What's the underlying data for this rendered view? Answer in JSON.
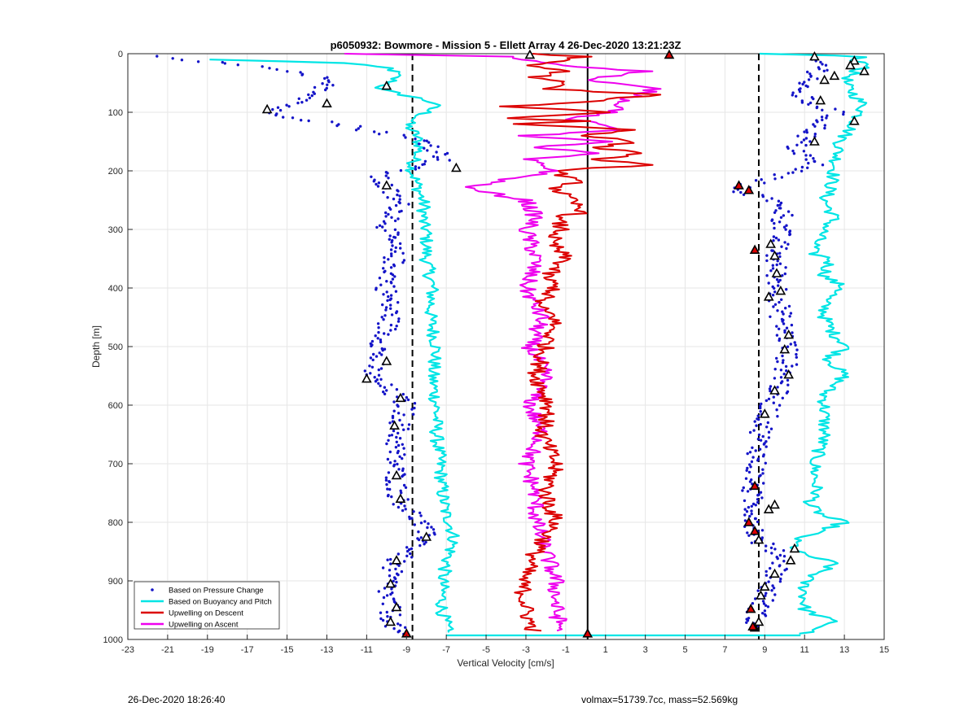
{
  "footer": {
    "timestamp": "26-Dec-2020 18:26:40",
    "params": "volmax=51739.7cc, mass=52.569kg"
  },
  "chart_data": {
    "type": "line",
    "title": "p6050932: Bowmore - Mission 5 - Ellett Array 4 26-Dec-2020 13:21:23Z",
    "xlabel": "Vertical Velocity [cm/s]",
    "ylabel": "Depth [m]",
    "xlim": [
      -23,
      15
    ],
    "ylim": [
      0,
      1000
    ],
    "y_reversed": true,
    "grid": true,
    "legend_placement": "bottom-left",
    "xticks": [
      -23,
      -21,
      -19,
      -17,
      -15,
      -13,
      -11,
      -9,
      -7,
      -5,
      -3,
      -1,
      1,
      3,
      5,
      7,
      9,
      11,
      13,
      15
    ],
    "yticks": [
      0,
      100,
      200,
      300,
      400,
      500,
      600,
      700,
      800,
      900,
      1000
    ],
    "reference_lines": [
      {
        "style": "dashed",
        "color": "#000000",
        "x": -8.7
      },
      {
        "style": "dashed",
        "color": "#000000",
        "x": 8.7
      },
      {
        "style": "solid",
        "color": "#000000",
        "x": 0.1
      }
    ],
    "series": [
      {
        "name": "Based on Pressure Change",
        "color": "#1414c8",
        "style": "markers",
        "descent": {
          "depth": [
            5,
            20,
            40,
            60,
            80,
            100,
            120,
            150,
            180,
            210,
            230,
            260,
            300,
            350,
            400,
            450,
            500,
            550,
            600,
            650,
            700,
            760,
            800,
            830,
            870,
            920,
            960,
            990
          ],
          "value": [
            -22.0,
            -17.0,
            -13.5,
            -13.0,
            -14.0,
            -16.0,
            -12.5,
            -8.0,
            -7.0,
            -10.5,
            -10.0,
            -9.3,
            -10.0,
            -9.6,
            -10.0,
            -9.8,
            -10.3,
            -10.8,
            -9.0,
            -9.5,
            -9.6,
            -9.4,
            -8.3,
            -8.0,
            -9.7,
            -10.0,
            -9.8,
            -9.5
          ]
        },
        "ascent": {
          "depth": [
            5,
            20,
            40,
            60,
            80,
            100,
            130,
            160,
            190,
            230,
            260,
            300,
            350,
            400,
            450,
            500,
            550,
            600,
            650,
            700,
            750,
            790,
            830,
            860,
            900,
            940,
            980
          ],
          "value": [
            11.0,
            12.0,
            11.5,
            10.5,
            11.0,
            12.5,
            11.5,
            10.5,
            11.5,
            7.5,
            10.0,
            9.8,
            9.5,
            9.7,
            9.8,
            10.2,
            10.0,
            9.3,
            8.8,
            8.6,
            8.3,
            8.5,
            8.6,
            10.0,
            9.4,
            8.8,
            8.3
          ]
        }
      },
      {
        "name": "Based on Buoyancy and Pitch",
        "color": "#00e5e5",
        "style": "line",
        "descent": {
          "depth": [
            10,
            15,
            25,
            35,
            50,
            60,
            75,
            85,
            100,
            120,
            140,
            160,
            180,
            200,
            230,
            260,
            290,
            300,
            350,
            400,
            450,
            500,
            550,
            600,
            650,
            700,
            750,
            790,
            800,
            830,
            850,
            870,
            900,
            950,
            980,
            990
          ],
          "value": [
            -19.0,
            -12.5,
            -9.8,
            -9.5,
            -9.8,
            -10.5,
            -8.5,
            -7.5,
            -8.0,
            -9.0,
            -8.5,
            -8.3,
            -8.6,
            -8.7,
            -8.4,
            -8.1,
            -8.2,
            -8.0,
            -8.0,
            -7.7,
            -7.8,
            -7.5,
            -7.7,
            -7.5,
            -7.5,
            -7.3,
            -7.2,
            -7.0,
            -6.8,
            -6.6,
            -6.8,
            -7.0,
            -7.2,
            -7.2,
            -7.0,
            -7.0
          ]
        },
        "ascent": {
          "depth": [
            0,
            5,
            10,
            20,
            30,
            50,
            70,
            90,
            100,
            120,
            150,
            180,
            200,
            230,
            250,
            280,
            300,
            340,
            350,
            380,
            400,
            420,
            450,
            480,
            500,
            520,
            550,
            580,
            600,
            650,
            700,
            750,
            770,
            790,
            800,
            830,
            850,
            870,
            900,
            950,
            970,
            990
          ],
          "value": [
            9.0,
            14.5,
            13.0,
            14.5,
            13.5,
            13.0,
            13.5,
            14.0,
            13.8,
            13.5,
            12.8,
            12.6,
            12.5,
            12.3,
            12.0,
            12.5,
            12.0,
            11.3,
            12.3,
            12.0,
            13.0,
            12.0,
            12.0,
            12.5,
            13.2,
            12.2,
            13.0,
            12.0,
            12.0,
            12.0,
            11.5,
            11.6,
            11.2,
            12.0,
            13.0,
            10.5,
            10.5,
            12.5,
            11.0,
            11.0,
            12.5,
            11.0
          ]
        },
        "bottom_transect": {
          "depth": [
            993,
            993,
            993
          ],
          "value": [
            -7.0,
            0.1,
            10.8
          ]
        }
      },
      {
        "name": "Upwelling on Descent",
        "color": "#dc0000",
        "style": "line",
        "depth": [
          0,
          5,
          20,
          30,
          40,
          50,
          60,
          70,
          85,
          90,
          100,
          110,
          115,
          120,
          125,
          130,
          140,
          150,
          160,
          170,
          180,
          190,
          200,
          220,
          230,
          250,
          270,
          280,
          300,
          320,
          350,
          380,
          400,
          430,
          450,
          500,
          550,
          600,
          650,
          700,
          750,
          800,
          850,
          900,
          950,
          970,
          985
        ],
        "value": [
          -3.0,
          0.0,
          -3.0,
          -1.0,
          -2.5,
          -1.0,
          -2.0,
          3.5,
          -1.0,
          -4.0,
          1.5,
          -4.0,
          0.0,
          -3.5,
          -0.5,
          2.5,
          0.0,
          2.5,
          0.5,
          3.0,
          0.5,
          3.0,
          -1.5,
          -0.5,
          -1.5,
          -0.8,
          0.0,
          -1.5,
          -1.2,
          -1.8,
          -1.0,
          -2.0,
          -1.5,
          -2.5,
          -1.5,
          -2.0,
          -2.5,
          -1.8,
          -2.2,
          -1.5,
          -2.0,
          -1.5,
          -2.5,
          -3.2,
          -3.0,
          -2.8,
          -2.6
        ]
      },
      {
        "name": "Upwelling on Ascent",
        "color": "#ee00ee",
        "style": "line",
        "depth": [
          0,
          5,
          20,
          30,
          45,
          60,
          80,
          100,
          110,
          130,
          140,
          150,
          160,
          170,
          180,
          200,
          215,
          230,
          250,
          280,
          300,
          350,
          400,
          450,
          500,
          550,
          600,
          650,
          700,
          750,
          800,
          850,
          900,
          950,
          985
        ],
        "value": [
          -12.0,
          -4.0,
          -1.0,
          3.0,
          0.0,
          3.5,
          2.0,
          1.5,
          -1.0,
          2.0,
          -3.0,
          1.0,
          -2.5,
          0.5,
          -3.0,
          -1.5,
          -4.0,
          -6.0,
          -3.0,
          -2.5,
          -3.0,
          -2.5,
          -3.0,
          -2.2,
          -2.8,
          -2.0,
          -2.8,
          -2.2,
          -3.0,
          -2.5,
          -2.5,
          -2.0,
          -1.5,
          -1.5,
          -1.2
        ]
      }
    ],
    "markers": {
      "triangles_open": [
        [
          -2.8,
          2
        ],
        [
          11.5,
          5
        ],
        [
          13.5,
          12
        ],
        [
          13.3,
          20
        ],
        [
          14.0,
          30
        ],
        [
          12.5,
          38
        ],
        [
          12.0,
          45
        ],
        [
          -10.0,
          55
        ],
        [
          11.8,
          80
        ],
        [
          -13.0,
          85
        ],
        [
          -16.0,
          95
        ],
        [
          13.5,
          115
        ],
        [
          11.5,
          150
        ],
        [
          -6.5,
          195
        ],
        [
          -10.0,
          225
        ],
        [
          9.3,
          325
        ],
        [
          9.5,
          345
        ],
        [
          9.6,
          375
        ],
        [
          9.8,
          405
        ],
        [
          9.2,
          415
        ],
        [
          10.2,
          480
        ],
        [
          -10.0,
          525
        ],
        [
          10.0,
          505
        ],
        [
          10.2,
          548
        ],
        [
          -11.0,
          555
        ],
        [
          9.5,
          575
        ],
        [
          -9.3,
          588
        ],
        [
          9.0,
          615
        ],
        [
          -9.6,
          635
        ],
        [
          -9.5,
          720
        ],
        [
          9.5,
          770
        ],
        [
          -9.3,
          760
        ],
        [
          9.2,
          778
        ],
        [
          -8.0,
          825
        ],
        [
          8.7,
          830
        ],
        [
          10.5,
          845
        ],
        [
          10.3,
          865
        ],
        [
          -9.5,
          865
        ],
        [
          9.5,
          888
        ],
        [
          9.0,
          910
        ],
        [
          -9.8,
          905
        ],
        [
          8.8,
          925
        ],
        [
          -9.5,
          945
        ],
        [
          8.7,
          970
        ],
        [
          -9.8,
          970
        ],
        [
          8.5,
          980
        ]
      ],
      "triangles_filled": [
        [
          4.2,
          2
        ],
        [
          -9.0,
          990
        ],
        [
          0.1,
          990
        ],
        [
          7.7,
          225
        ],
        [
          8.2,
          233
        ],
        [
          8.5,
          335
        ],
        [
          8.5,
          738
        ],
        [
          8.2,
          800
        ],
        [
          8.5,
          815
        ],
        [
          8.3,
          948
        ],
        [
          8.4,
          978
        ]
      ]
    }
  }
}
